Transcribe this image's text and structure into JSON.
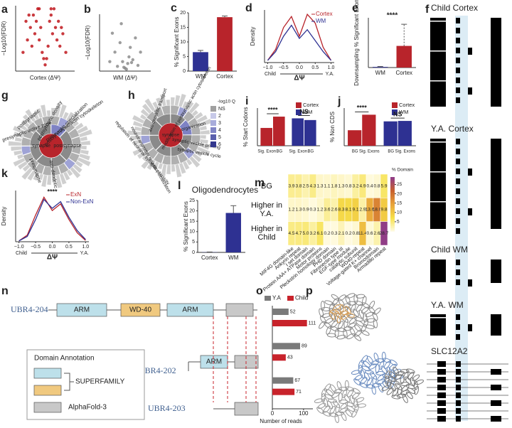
{
  "panel_labels": [
    "a",
    "b",
    "c",
    "d",
    "e",
    "f",
    "g",
    "h",
    "i",
    "j",
    "k",
    "l",
    "m",
    "n",
    "o",
    "p"
  ],
  "chart_data": [
    {
      "type": "scatter",
      "xlabel": "Cortex (ΔΨ)",
      "ylabel": "−Log10(FDR)",
      "color": "#c0161c",
      "xlim": [
        -1,
        1
      ],
      "ylim": [
        0,
        10.5
      ],
      "x": [
        -0.75,
        -0.6,
        -0.5,
        -0.45,
        -0.4,
        -0.35,
        -0.3,
        -0.25,
        -0.2,
        -0.15,
        -0.1,
        -0.05,
        0,
        0.05,
        0.1,
        0.15,
        0.2,
        0.25,
        0.3,
        0.35,
        0.4,
        0.45,
        0.5,
        0.6,
        0.7,
        -0.55,
        -0.2,
        0.2,
        0.55,
        -0.65
      ],
      "values": [
        3,
        5,
        7,
        4,
        9,
        6,
        8,
        10,
        5,
        7,
        3,
        2,
        1,
        2,
        4,
        8,
        9,
        6,
        10,
        7,
        5,
        8,
        4,
        6,
        3,
        9,
        10,
        10,
        7,
        8
      ]
    },
    {
      "type": "scatter",
      "xlabel": "WM (ΔΨ)",
      "ylabel": "−Log10(FDR)",
      "color": "#8c8c8c",
      "xlim": [
        -1,
        1
      ],
      "ylim": [
        0,
        6
      ],
      "x": [
        -0.6,
        -0.4,
        -0.3,
        -0.2,
        -0.1,
        0,
        0.1,
        0.2,
        0.3,
        0.5,
        -0.5,
        0.4,
        0.05,
        -0.05,
        0.15,
        0.6,
        -0.15,
        0.25
      ],
      "values": [
        1,
        2,
        0.5,
        3,
        1,
        0.3,
        0.8,
        2.5,
        1.2,
        0.6,
        4,
        3.5,
        0.2,
        0.4,
        1.5,
        2,
        5,
        0.9
      ]
    },
    {
      "type": "bar",
      "ylabel": "% Significant Exons",
      "categories": [
        "WM",
        "Cortex"
      ],
      "values": [
        6.5,
        18.5
      ],
      "errors": [
        0.6,
        0.4
      ],
      "colors": [
        "#2e3192",
        "#b8242b"
      ],
      "ylim": [
        0,
        20
      ],
      "yticks": [
        0,
        5,
        10,
        15,
        20
      ]
    },
    {
      "type": "line",
      "xlabel": "ΔΨ",
      "ylabel": "Density",
      "x_end_labels": [
        "Child",
        "Y.A."
      ],
      "xlim": [
        -1.1,
        1.1
      ],
      "ylim": [
        0,
        1.2
      ],
      "xticks": [
        {
          "value": -1,
          "label": "−1.0"
        },
        {
          "value": -0.5,
          "label": "−0.5"
        },
        {
          "value": 0,
          "label": "0.0"
        },
        {
          "value": 0.5,
          "label": "0.5"
        },
        {
          "value": 1,
          "label": "1.0"
        }
      ],
      "x": [
        -1,
        -0.75,
        -0.5,
        -0.25,
        0,
        0.25,
        0.5,
        0.75,
        1
      ],
      "series": [
        {
          "name": "Cortex",
          "color": "#b8242b",
          "values": [
            0.05,
            0.3,
            0.8,
            1.05,
            0.6,
            1.1,
            0.9,
            0.35,
            0.05
          ]
        },
        {
          "name": "WM",
          "color": "#2e3192",
          "values": [
            0.05,
            0.25,
            0.6,
            0.85,
            0.55,
            0.75,
            0.5,
            0.25,
            0.05
          ]
        }
      ]
    },
    {
      "type": "bar",
      "ylabel": "Downsampling % Significant Exon",
      "categories": [
        "WM",
        "Cortex"
      ],
      "values": [
        0.03,
        1
      ],
      "errors": [
        0.02,
        1
      ],
      "colors": [
        "#2e3192",
        "#b8242b"
      ],
      "ylim": [
        0,
        2.3
      ],
      "annotations": [
        "****"
      ]
    },
    {
      "type": "bar",
      "ylabel": "% Start Codons",
      "categories": [
        "Sig. Exon",
        "BG"
      ],
      "ylim": [
        0,
        11
      ],
      "annotations": [
        "****",
        "NS"
      ],
      "series": [
        {
          "name": "Cortex",
          "color": "#b8242b",
          "values": [
            5.2,
            8.5
          ]
        },
        {
          "name": "WM",
          "color": "#2e3192",
          "values": [
            8,
            7.5
          ]
        }
      ]
    },
    {
      "type": "bar",
      "ylabel": "% Non CDS",
      "categories": [
        "BG",
        "Sig. Exons"
      ],
      "ylim": [
        0,
        17
      ],
      "annotations": [
        "****",
        "NS"
      ],
      "series": [
        {
          "name": "Cortex",
          "color": "#b8242b",
          "values": [
            7,
            14
          ]
        },
        {
          "name": "WM",
          "color": "#2e3192",
          "values": [
            11,
            11.2
          ]
        }
      ]
    },
    {
      "type": "line",
      "xlabel": "ΔΨ",
      "ylabel": "Density",
      "x_end_labels": [
        "Child",
        "Y.A."
      ],
      "xlim": [
        -1.1,
        1.1
      ],
      "ylim": [
        0,
        1.15
      ],
      "annotations": [
        "****"
      ],
      "xticks": [
        {
          "value": -1,
          "label": "−1.0"
        },
        {
          "value": -0.5,
          "label": "−0.5"
        },
        {
          "value": 0,
          "label": "0.0"
        },
        {
          "value": 0.5,
          "label": "0.5"
        },
        {
          "value": 1,
          "label": "1.0"
        }
      ],
      "x": [
        -1,
        -0.75,
        -0.5,
        -0.25,
        0,
        0.25,
        0.5,
        0.75,
        1
      ],
      "series": [
        {
          "name": "ExN",
          "color": "#b8242b",
          "values": [
            0.02,
            0.15,
            0.6,
            1,
            0.7,
            0.85,
            0.5,
            0.2,
            0.03
          ]
        },
        {
          "name": "Non-ExN",
          "color": "#2e3192",
          "values": [
            0.02,
            0.12,
            0.5,
            0.95,
            0.75,
            0.9,
            0.55,
            0.25,
            0.05
          ]
        }
      ]
    },
    {
      "type": "bar",
      "title": "Oligodendrocytes",
      "ylabel": "% Significant Exons",
      "categories": [
        "Cortex",
        "WM"
      ],
      "values": [
        0.1,
        19
      ],
      "errors": [
        0.1,
        3.5
      ],
      "colors": [
        "#2e3192",
        "#2e3192"
      ],
      "ylim": [
        0,
        25
      ],
      "yticks": [
        0,
        5,
        10,
        15,
        20,
        25
      ]
    },
    {
      "type": "heatmap",
      "rows": [
        "BG",
        "Higher in Y.A.",
        "Higher in Child"
      ],
      "columns": [
        "MIF4G domain-like",
        "Ankyrin repeat",
        "I set domain",
        "Protein AAA+ ATPase domain",
        "Motor proteins",
        "Pleckstrin homology domain",
        "PHD domain",
        "Fibronectin type III",
        "EGF-type module",
        "catalytic subunit",
        "WD40-repeat",
        "Voltage-gated K+ channel",
        "Bromodomain",
        "Armadillo repeat"
      ],
      "values": [
        [
          3.9,
          3.8,
          2.5,
          4.3,
          1.3,
          1.1,
          1.8,
          1.3,
          0.8,
          3.2,
          4.9,
          0.4,
          0.8,
          5.9
        ],
        [
          1.2,
          1.3,
          0.9,
          0.3,
          1.2,
          3.6,
          2.6,
          8.3,
          8.1,
          9.1,
          2.9,
          13.6,
          18,
          9.8
        ],
        [
          4.5,
          4.7,
          5,
          3.2,
          6.1,
          0.2,
          0.3,
          2.1,
          0.2,
          0.8,
          11.4,
          0.6,
          2.6,
          28.7
        ]
      ],
      "value_labels": [
        [
          "3.9",
          "3.8",
          "2.5",
          "4.3",
          "1.3",
          "1.1",
          "1.8",
          "1.3",
          "0.8",
          "3.2",
          "4.9",
          "0.4",
          "0.8",
          "5.9"
        ],
        [
          "1.2",
          "1.3",
          "0.9",
          "0.3",
          "1.2",
          "3.6",
          "2.6",
          "8.3",
          "8.1",
          "9.1",
          "2.9",
          "13.6",
          "18.0",
          "9.8"
        ],
        [
          "4.5",
          "4.7",
          "5.0",
          "3.2",
          "6.1",
          "0.2",
          "0.3",
          "2.1",
          "0.2",
          "0.8",
          "11.4",
          "0.6",
          "2.6",
          "28.7"
        ]
      ],
      "colorscale": [
        "#fffbe3",
        "#f7e14a",
        "#e8a33a",
        "#c9612e",
        "#8e3b8a"
      ],
      "zlim": [
        0,
        29
      ],
      "cbar_label": "% Domain",
      "cbar_ticks": [
        5,
        10,
        15,
        20,
        25
      ]
    },
    {
      "type": "hbar",
      "categories": [
        null,
        null,
        null
      ],
      "xlim": [
        0,
        130
      ],
      "xticks": [
        0,
        100
      ],
      "xlabel": "Number of reads",
      "series": [
        {
          "name": "Y.A",
          "color": "#7a7a7a",
          "values": [
            52,
            89,
            67
          ]
        },
        {
          "name": "Child",
          "color": "#c8232b",
          "values": [
            111,
            43,
            71
          ]
        }
      ]
    }
  ],
  "sunbursts": [
    {
      "labels": [
        "synapse",
        "postsynapse",
        "postsynaptic density",
        "postsynaptic specialization",
        "postsynaptic actin cytoskeleton",
        "presynaptic active zone",
        "postsynaptic",
        "presynapse",
        "axo-dendritic"
      ]
    },
    {
      "labels": [
        "synapse",
        "organization",
        "modification of postsynaptic actin cytoskeleton",
        "synaptic vesicle cycle",
        "synaptic vesicle priming",
        "neurotransmitter receptor localization",
        "regulation of neuronal synaptic plasticity",
        "axo-dendritic transport"
      ],
      "legend_title": "-log10 Q",
      "legend": [
        "NS",
        "2",
        "3",
        "4",
        "5",
        "6"
      ]
    }
  ],
  "tracks": {
    "labels": [
      "Child Cortex",
      "Y.A. Cortex",
      "Child WM",
      "Y.A. WM",
      "SLC12A2"
    ]
  },
  "diagram": {
    "transcripts": [
      "UBR4-204",
      "UBR4-202",
      "UBR4-203"
    ],
    "domains": [
      "ARM",
      "WD-40",
      "ARM",
      "ARM"
    ],
    "legend_title": "Domain Annotation",
    "legend": [
      "SUPERFAMILY",
      "AlphaFold-3"
    ]
  }
}
